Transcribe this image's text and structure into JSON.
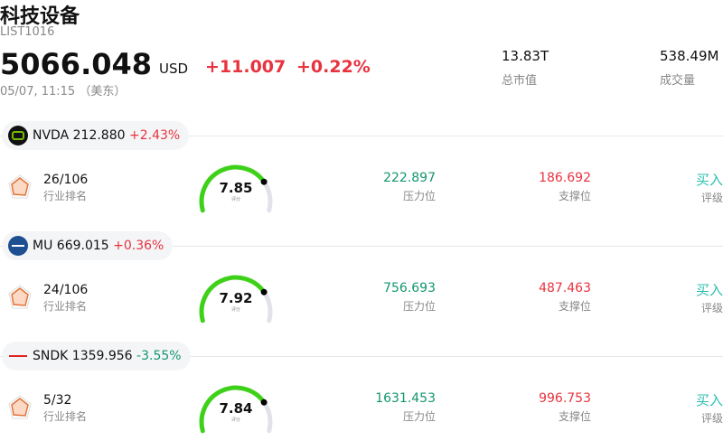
{
  "header": {
    "title": "科技设备",
    "code": "LIST1016",
    "price": "5066.048",
    "currency": "USD",
    "change": "+11.007",
    "change_pct": "+0.22%",
    "time": "05/07, 11:15 （美东）",
    "stats": [
      {
        "value": "13.83T",
        "label": "总市值"
      },
      {
        "value": "538.49M",
        "label": "成交量"
      }
    ]
  },
  "stocks": [
    {
      "ticker": "NVDA",
      "price": "212.880",
      "change": "+2.43%",
      "rank": "26/106",
      "rank_label": "行业排名",
      "score": "7.85",
      "score_label": "评分",
      "resistance": "222.897",
      "resistance_label": "压力位",
      "support": "186.692",
      "support_label": "支撑位",
      "rating": "买入",
      "rating_label": "评级"
    },
    {
      "ticker": "MU",
      "price": "669.015",
      "change": "+0.36%",
      "rank": "24/106",
      "rank_label": "行业排名",
      "score": "7.92",
      "score_label": "评分",
      "resistance": "756.693",
      "resistance_label": "压力位",
      "support": "487.463",
      "support_label": "支撑位",
      "rating": "买入",
      "rating_label": "评级"
    },
    {
      "ticker": "SNDK",
      "price": "1359.956",
      "change": "-3.55%",
      "rank": "5/32",
      "rank_label": "行业排名",
      "score": "7.84",
      "score_label": "评分",
      "resistance": "1631.453",
      "resistance_label": "压力位",
      "support": "996.753",
      "support_label": "支撑位",
      "rating": "买入",
      "rating_label": "评级"
    }
  ]
}
